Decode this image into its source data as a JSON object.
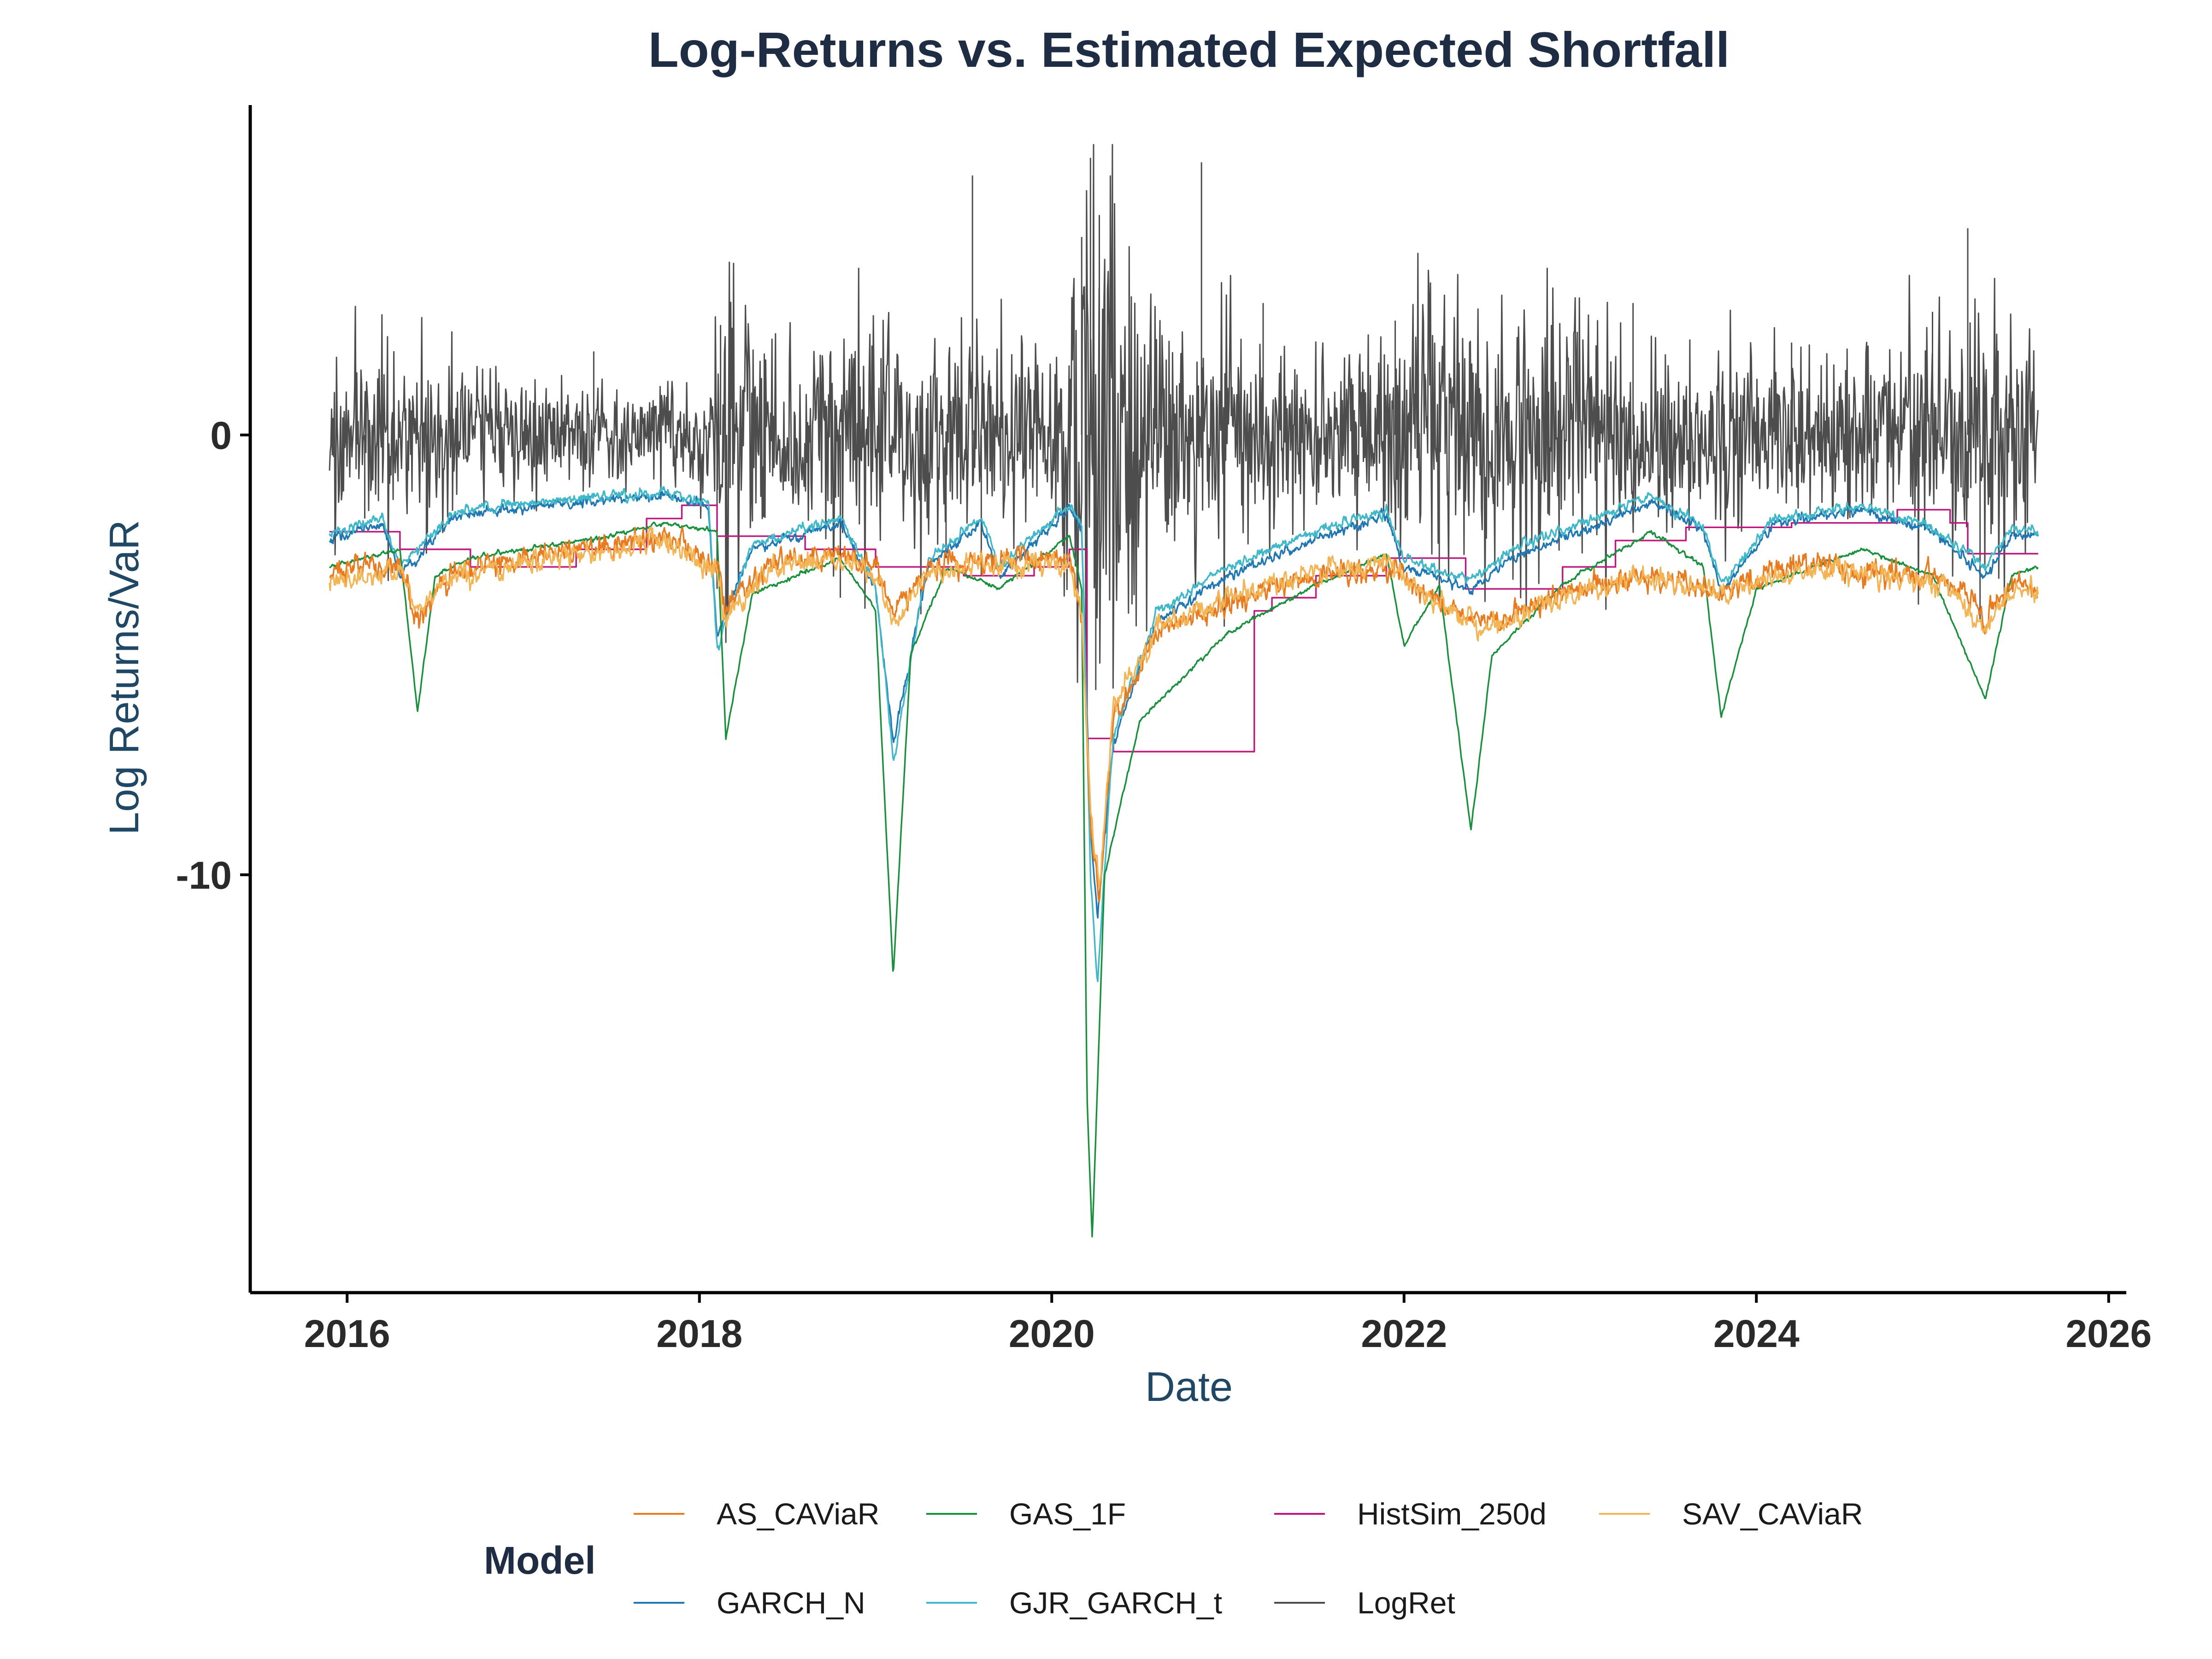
{
  "chart_data": {
    "type": "line",
    "title": "Log-Returns vs. Estimated Expected Shortfall",
    "xlabel": "Date",
    "ylabel": "Log Returns/VaR",
    "xlim": [
      2015.45,
      2026.1
    ],
    "ylim": [
      -19.5,
      7.5
    ],
    "x_ticks": [
      2016,
      2018,
      2020,
      2022,
      2024,
      2026
    ],
    "x_tick_labels": [
      "2016",
      "2018",
      "2020",
      "2022",
      "2024",
      "2026"
    ],
    "y_ticks": [
      0,
      -10
    ],
    "y_tick_labels": [
      "0",
      "-10"
    ],
    "legend": {
      "title": "Model",
      "position": "bottom",
      "entries": [
        "AS_CAViaR",
        "GAS_1F",
        "HistSim_250d",
        "SAV_CAViaR",
        "GARCH_N",
        "GJR_GARCH_t",
        "LogRet"
      ]
    },
    "series": [
      {
        "name": "HistSim_250d",
        "color": "#c0177e",
        "points": [
          [
            2015.9,
            -2.2
          ],
          [
            2016.3,
            -2.2
          ],
          [
            2016.3,
            -2.6
          ],
          [
            2016.7,
            -2.6
          ],
          [
            2016.7,
            -3.0
          ],
          [
            2017.3,
            -3.0
          ],
          [
            2017.3,
            -2.6
          ],
          [
            2017.7,
            -2.6
          ],
          [
            2017.7,
            -1.9
          ],
          [
            2017.9,
            -1.9
          ],
          [
            2017.9,
            -1.6
          ],
          [
            2018.1,
            -1.6
          ],
          [
            2018.1,
            -2.3
          ],
          [
            2018.6,
            -2.3
          ],
          [
            2018.6,
            -2.6
          ],
          [
            2019.0,
            -2.6
          ],
          [
            2019.0,
            -3.0
          ],
          [
            2019.5,
            -3.0
          ],
          [
            2019.5,
            -3.2
          ],
          [
            2019.9,
            -3.2
          ],
          [
            2019.9,
            -3.0
          ],
          [
            2020.1,
            -3.0
          ],
          [
            2020.1,
            -2.6
          ],
          [
            2020.2,
            -2.6
          ],
          [
            2020.2,
            -6.9
          ],
          [
            2020.35,
            -6.9
          ],
          [
            2020.35,
            -7.2
          ],
          [
            2021.15,
            -7.2
          ],
          [
            2021.15,
            -4.0
          ],
          [
            2021.25,
            -4.0
          ],
          [
            2021.25,
            -3.7
          ],
          [
            2021.5,
            -3.7
          ],
          [
            2021.5,
            -3.2
          ],
          [
            2021.9,
            -3.2
          ],
          [
            2021.9,
            -2.8
          ],
          [
            2022.35,
            -2.8
          ],
          [
            2022.35,
            -3.5
          ],
          [
            2022.9,
            -3.5
          ],
          [
            2022.9,
            -3.0
          ],
          [
            2023.2,
            -3.0
          ],
          [
            2023.2,
            -2.4
          ],
          [
            2023.6,
            -2.4
          ],
          [
            2023.6,
            -2.1
          ],
          [
            2024.2,
            -2.1
          ],
          [
            2024.2,
            -2.0
          ],
          [
            2024.8,
            -2.0
          ],
          [
            2024.8,
            -1.7
          ],
          [
            2025.1,
            -1.7
          ],
          [
            2025.1,
            -2.0
          ],
          [
            2025.2,
            -2.0
          ],
          [
            2025.2,
            -2.7
          ],
          [
            2025.6,
            -2.7
          ]
        ]
      },
      {
        "name": "GARCH_N",
        "color": "#1f77b4",
        "points": [
          [
            2015.9,
            -2.4
          ],
          [
            2016.2,
            -2.0
          ],
          [
            2016.3,
            -3.2
          ],
          [
            2016.6,
            -1.9
          ],
          [
            2016.9,
            -1.7
          ],
          [
            2017.4,
            -1.5
          ],
          [
            2017.8,
            -1.4
          ],
          [
            2018.05,
            -1.6
          ],
          [
            2018.1,
            -4.5
          ],
          [
            2018.3,
            -2.6
          ],
          [
            2018.8,
            -2.0
          ],
          [
            2019.0,
            -3.5
          ],
          [
            2019.1,
            -7.0
          ],
          [
            2019.3,
            -3.0
          ],
          [
            2019.6,
            -2.0
          ],
          [
            2019.7,
            -3.2
          ],
          [
            2020.1,
            -1.7
          ],
          [
            2020.17,
            -2.2
          ],
          [
            2020.22,
            -9.0
          ],
          [
            2020.26,
            -11.0
          ],
          [
            2020.35,
            -7.0
          ],
          [
            2020.6,
            -4.2
          ],
          [
            2021.0,
            -3.2
          ],
          [
            2021.5,
            -2.4
          ],
          [
            2021.9,
            -1.8
          ],
          [
            2022.0,
            -3.0
          ],
          [
            2022.4,
            -3.5
          ],
          [
            2022.6,
            -2.8
          ],
          [
            2023.0,
            -2.2
          ],
          [
            2023.4,
            -1.5
          ],
          [
            2023.7,
            -2.2
          ],
          [
            2023.8,
            -3.6
          ],
          [
            2024.1,
            -2.0
          ],
          [
            2024.6,
            -1.7
          ],
          [
            2025.0,
            -2.2
          ],
          [
            2025.3,
            -3.2
          ],
          [
            2025.45,
            -2.3
          ],
          [
            2025.6,
            -2.3
          ]
        ]
      },
      {
        "name": "GJR_GARCH_t",
        "color": "#3fb8c9",
        "points": [
          [
            2015.9,
            -2.2
          ],
          [
            2016.2,
            -1.9
          ],
          [
            2016.3,
            -3.0
          ],
          [
            2016.6,
            -1.8
          ],
          [
            2016.9,
            -1.6
          ],
          [
            2017.4,
            -1.4
          ],
          [
            2017.8,
            -1.3
          ],
          [
            2018.05,
            -1.5
          ],
          [
            2018.1,
            -4.8
          ],
          [
            2018.3,
            -2.5
          ],
          [
            2018.8,
            -1.9
          ],
          [
            2019.0,
            -3.4
          ],
          [
            2019.1,
            -7.4
          ],
          [
            2019.3,
            -2.8
          ],
          [
            2019.6,
            -1.9
          ],
          [
            2019.7,
            -3.0
          ],
          [
            2020.1,
            -1.6
          ],
          [
            2020.17,
            -2.0
          ],
          [
            2020.22,
            -10.0
          ],
          [
            2020.26,
            -12.5
          ],
          [
            2020.35,
            -6.8
          ],
          [
            2020.6,
            -4.0
          ],
          [
            2021.0,
            -3.0
          ],
          [
            2021.5,
            -2.2
          ],
          [
            2021.9,
            -1.7
          ],
          [
            2022.0,
            -2.8
          ],
          [
            2022.4,
            -3.3
          ],
          [
            2022.6,
            -2.6
          ],
          [
            2023.0,
            -2.0
          ],
          [
            2023.4,
            -1.4
          ],
          [
            2023.7,
            -2.1
          ],
          [
            2023.8,
            -3.4
          ],
          [
            2024.1,
            -1.9
          ],
          [
            2024.6,
            -1.6
          ],
          [
            2025.0,
            -2.1
          ],
          [
            2025.3,
            -3.0
          ],
          [
            2025.45,
            -2.1
          ],
          [
            2025.6,
            -2.2
          ]
        ]
      },
      {
        "name": "GAS_1F",
        "color": "#17913b",
        "points": [
          [
            2015.9,
            -3.0
          ],
          [
            2016.3,
            -2.6
          ],
          [
            2016.4,
            -6.3
          ],
          [
            2016.5,
            -3.2
          ],
          [
            2016.7,
            -2.8
          ],
          [
            2017.5,
            -2.3
          ],
          [
            2017.8,
            -2.0
          ],
          [
            2018.1,
            -2.2
          ],
          [
            2018.15,
            -6.9
          ],
          [
            2018.3,
            -3.6
          ],
          [
            2018.8,
            -2.8
          ],
          [
            2019.0,
            -4.0
          ],
          [
            2019.1,
            -12.3
          ],
          [
            2019.2,
            -5.0
          ],
          [
            2019.4,
            -3.0
          ],
          [
            2019.7,
            -3.5
          ],
          [
            2020.1,
            -2.3
          ],
          [
            2020.17,
            -3.5
          ],
          [
            2020.2,
            -15.0
          ],
          [
            2020.23,
            -18.3
          ],
          [
            2020.3,
            -10.0
          ],
          [
            2020.5,
            -6.5
          ],
          [
            2021.0,
            -4.5
          ],
          [
            2021.5,
            -3.4
          ],
          [
            2021.9,
            -2.7
          ],
          [
            2022.0,
            -4.8
          ],
          [
            2022.2,
            -3.4
          ],
          [
            2022.38,
            -9.0
          ],
          [
            2022.5,
            -5.0
          ],
          [
            2022.9,
            -3.4
          ],
          [
            2023.4,
            -2.2
          ],
          [
            2023.7,
            -3.0
          ],
          [
            2023.8,
            -6.4
          ],
          [
            2024.0,
            -3.5
          ],
          [
            2024.6,
            -2.6
          ],
          [
            2025.0,
            -3.2
          ],
          [
            2025.3,
            -6.0
          ],
          [
            2025.45,
            -3.2
          ],
          [
            2025.6,
            -3.0
          ]
        ]
      },
      {
        "name": "AS_CAViaR",
        "color": "#ea7a1e",
        "points": [
          [
            2015.9,
            -3.1
          ],
          [
            2016.3,
            -2.9
          ],
          [
            2016.4,
            -4.2
          ],
          [
            2016.6,
            -3.1
          ],
          [
            2017.0,
            -2.8
          ],
          [
            2017.5,
            -2.5
          ],
          [
            2017.8,
            -2.3
          ],
          [
            2018.1,
            -3.0
          ],
          [
            2018.15,
            -4.0
          ],
          [
            2018.4,
            -2.9
          ],
          [
            2018.8,
            -2.7
          ],
          [
            2019.0,
            -3.0
          ],
          [
            2019.1,
            -4.0
          ],
          [
            2019.3,
            -3.0
          ],
          [
            2019.7,
            -2.8
          ],
          [
            2020.1,
            -2.8
          ],
          [
            2020.17,
            -4.0
          ],
          [
            2020.22,
            -9.0
          ],
          [
            2020.27,
            -10.5
          ],
          [
            2020.35,
            -6.5
          ],
          [
            2020.6,
            -4.5
          ],
          [
            2021.0,
            -3.8
          ],
          [
            2021.5,
            -3.2
          ],
          [
            2021.9,
            -3.0
          ],
          [
            2022.2,
            -3.8
          ],
          [
            2022.5,
            -4.3
          ],
          [
            2022.9,
            -3.6
          ],
          [
            2023.3,
            -3.2
          ],
          [
            2023.8,
            -3.5
          ],
          [
            2024.3,
            -2.9
          ],
          [
            2024.7,
            -3.1
          ],
          [
            2025.1,
            -3.3
          ],
          [
            2025.3,
            -4.2
          ],
          [
            2025.45,
            -3.4
          ],
          [
            2025.6,
            -3.4
          ]
        ]
      },
      {
        "name": "SAV_CAViaR",
        "color": "#f4b454",
        "points": [
          [
            2015.9,
            -3.4
          ],
          [
            2016.3,
            -3.1
          ],
          [
            2016.4,
            -4.0
          ],
          [
            2016.6,
            -3.2
          ],
          [
            2017.0,
            -2.9
          ],
          [
            2017.5,
            -2.6
          ],
          [
            2017.8,
            -2.4
          ],
          [
            2018.1,
            -3.1
          ],
          [
            2018.15,
            -4.2
          ],
          [
            2018.4,
            -3.0
          ],
          [
            2018.8,
            -2.8
          ],
          [
            2019.0,
            -3.1
          ],
          [
            2019.1,
            -4.3
          ],
          [
            2019.3,
            -3.1
          ],
          [
            2019.7,
            -2.9
          ],
          [
            2020.1,
            -2.9
          ],
          [
            2020.17,
            -4.2
          ],
          [
            2020.22,
            -8.6
          ],
          [
            2020.27,
            -10.2
          ],
          [
            2020.35,
            -6.2
          ],
          [
            2020.6,
            -4.4
          ],
          [
            2021.0,
            -3.7
          ],
          [
            2021.5,
            -3.1
          ],
          [
            2021.9,
            -2.9
          ],
          [
            2022.2,
            -3.9
          ],
          [
            2022.5,
            -4.4
          ],
          [
            2022.9,
            -3.7
          ],
          [
            2023.3,
            -3.3
          ],
          [
            2023.8,
            -3.6
          ],
          [
            2024.3,
            -3.0
          ],
          [
            2024.7,
            -3.2
          ],
          [
            2025.1,
            -3.4
          ],
          [
            2025.3,
            -4.5
          ],
          [
            2025.45,
            -3.5
          ],
          [
            2025.6,
            -3.5
          ]
        ]
      },
      {
        "name": "LogRet",
        "color": "#4d4d4d",
        "vol_points": [
          [
            2015.9,
            0.9
          ],
          [
            2016.3,
            1.1
          ],
          [
            2016.7,
            0.8
          ],
          [
            2017.2,
            0.6
          ],
          [
            2017.7,
            0.5
          ],
          [
            2018.0,
            0.7
          ],
          [
            2018.15,
            1.9
          ],
          [
            2018.4,
            1.1
          ],
          [
            2018.9,
            1.4
          ],
          [
            2019.3,
            1.0
          ],
          [
            2019.6,
            1.4
          ],
          [
            2020.0,
            0.9
          ],
          [
            2020.17,
            2.9
          ],
          [
            2020.3,
            3.1
          ],
          [
            2020.5,
            1.6
          ],
          [
            2020.8,
            1.3
          ],
          [
            2021.2,
            1.0
          ],
          [
            2021.6,
            0.9
          ],
          [
            2021.9,
            1.1
          ],
          [
            2022.1,
            1.5
          ],
          [
            2022.5,
            1.6
          ],
          [
            2022.9,
            1.4
          ],
          [
            2023.3,
            1.0
          ],
          [
            2023.8,
            1.0
          ],
          [
            2024.3,
            0.9
          ],
          [
            2024.8,
            1.0
          ],
          [
            2025.1,
            1.4
          ],
          [
            2025.3,
            1.6
          ],
          [
            2025.6,
            1.0
          ]
        ],
        "spikes": [
          [
            2016.1,
            -1.9
          ],
          [
            2016.45,
            -2.7
          ],
          [
            2017.4,
            1.9
          ],
          [
            2018.1,
            -3.5
          ],
          [
            2018.12,
            2.5
          ],
          [
            2018.8,
            -3.7
          ],
          [
            2019.4,
            -2.8
          ],
          [
            2019.55,
            5.9
          ],
          [
            2019.6,
            -3.2
          ],
          [
            2020.17,
            4.5
          ],
          [
            2020.2,
            -6.6
          ],
          [
            2020.22,
            6.3
          ],
          [
            2020.25,
            -5.8
          ],
          [
            2020.27,
            5.0
          ],
          [
            2020.85,
            6.2
          ],
          [
            2021.2,
            3.0
          ],
          [
            2021.95,
            2.6
          ],
          [
            2022.2,
            -3.9
          ],
          [
            2023.3,
            3.0
          ],
          [
            2024.2,
            2.1
          ],
          [
            2025.0,
            2.8
          ],
          [
            2025.2,
            4.7
          ],
          [
            2025.27,
            -4.2
          ]
        ]
      }
    ]
  }
}
